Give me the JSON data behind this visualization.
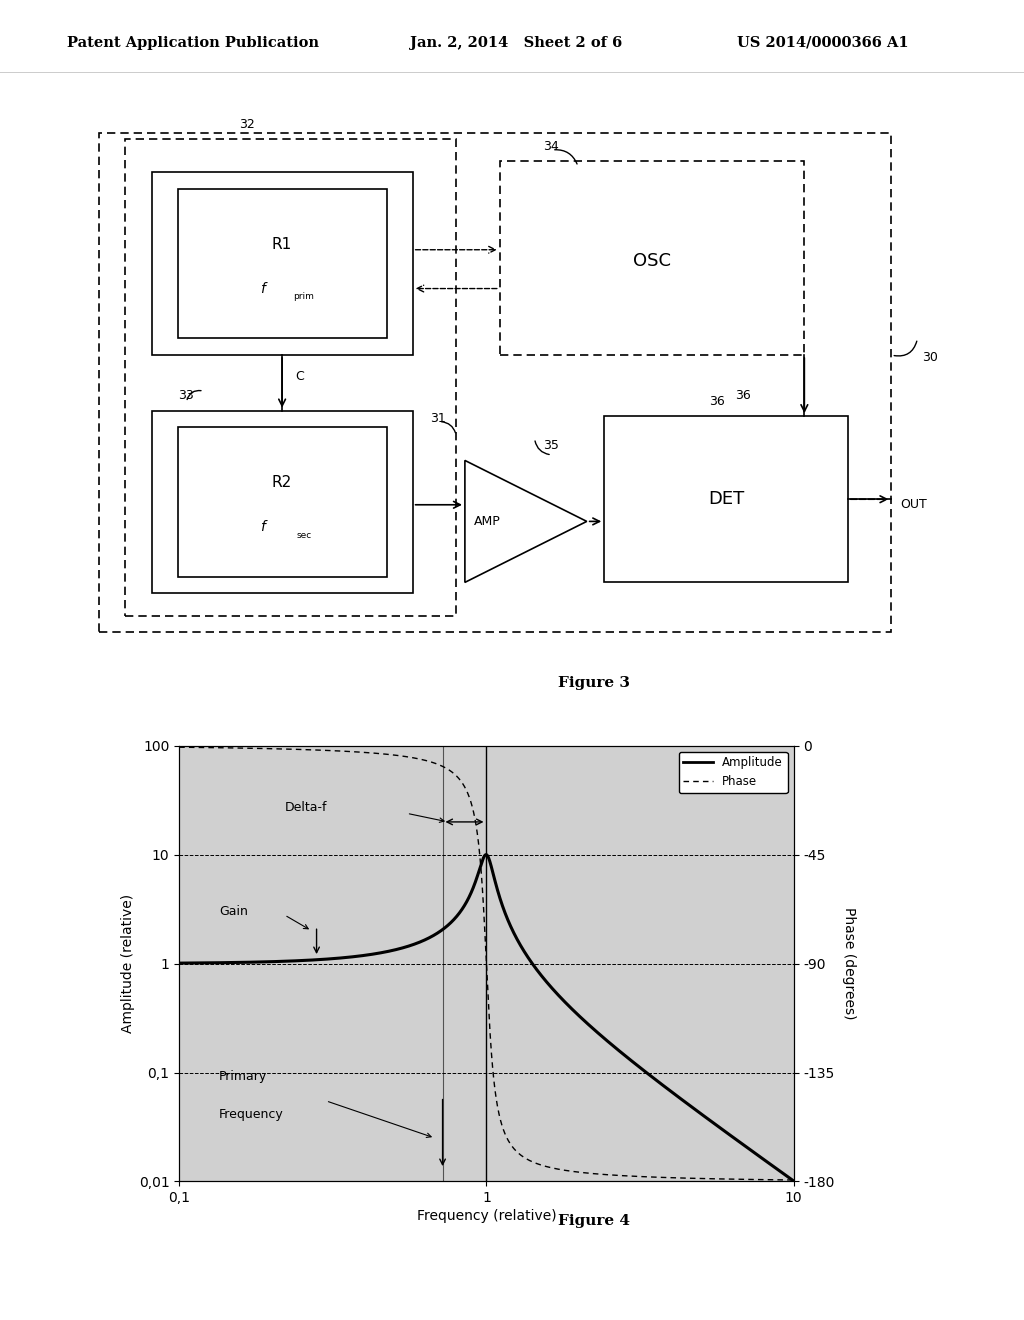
{
  "header_left": "Patent Application Publication",
  "header_mid": "Jan. 2, 2014   Sheet 2 of 6",
  "header_right": "US 2014/0000366 A1",
  "fig3_label": "Figure 3",
  "fig4_label": "Figure 4",
  "background_color": "#ffffff",
  "fig4": {
    "xlabel": "Frequency (relative)",
    "ylabel_left": "Amplitude (relative)",
    "ylabel_right": "Phase (degrees)",
    "legend_amplitude": "Amplitude",
    "legend_phase": "Phase",
    "annotation_deltaf": "Delta-f",
    "annotation_gain": "Gain",
    "annotation_primfreq_1": "Primary",
    "annotation_primfreq_2": "Frequency",
    "bg_color": "#d0d0d0",
    "Q_factor": 10
  }
}
